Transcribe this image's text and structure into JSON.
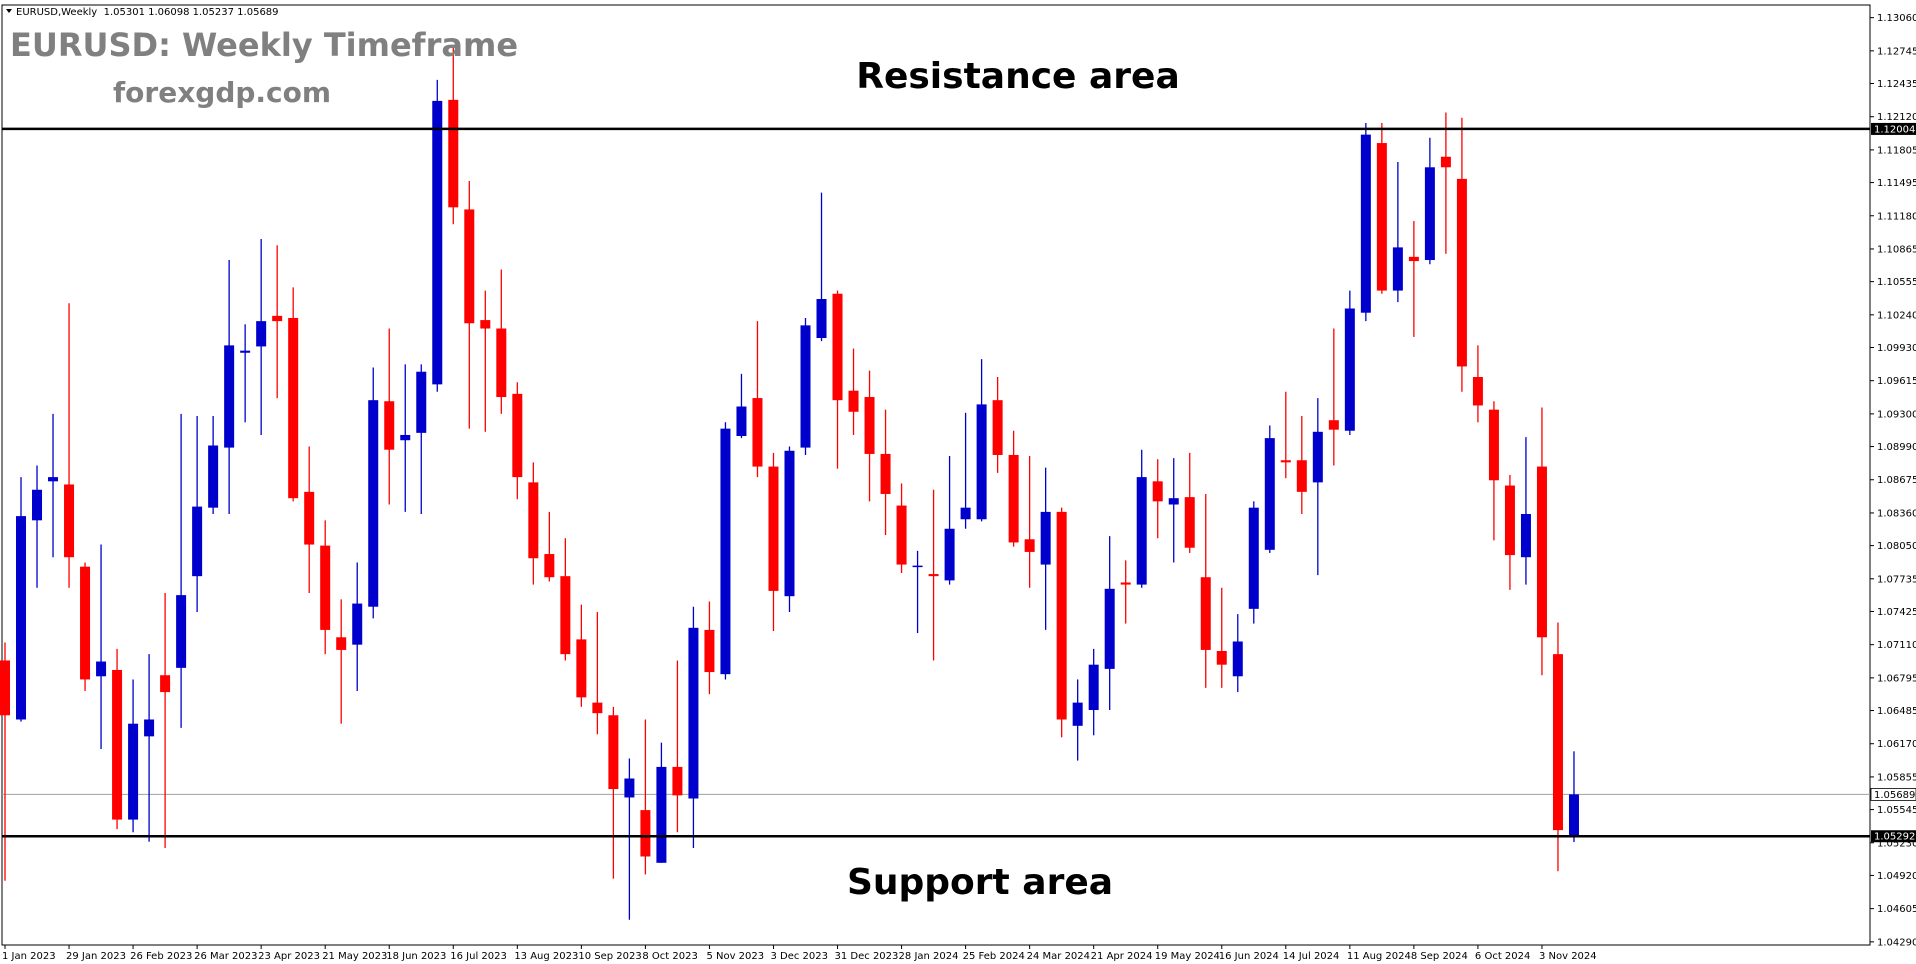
{
  "chart_data": {
    "type": "candlestick",
    "header": "EURUSD,Weekly  1.05301 1.06098 1.05237 1.05689",
    "title": "EURUSD: Weekly Timeframe",
    "subtitle": "forexgdp.com",
    "annotations": [
      "Resistance area",
      "Support area"
    ],
    "up_color": "#0000cd",
    "down_color": "#ff0000",
    "hlines": [
      1.12004,
      1.05292
    ],
    "price_line": 1.05689,
    "ylim": [
      1.0426,
      1.1318
    ],
    "yticks": [
      {
        "value": 1.1306,
        "label": "1.13060"
      },
      1.12745,
      1.12435,
      {
        "value": 1.1212,
        "label": "1.12120"
      },
      1.11805,
      1.11495,
      {
        "value": 1.1118,
        "label": "1.11180"
      },
      1.10865,
      1.10555,
      {
        "value": 1.1024,
        "label": "1.10240"
      },
      {
        "value": 1.0993,
        "label": "1.09930"
      },
      1.09615,
      {
        "value": 1.093,
        "label": "1.09300"
      },
      {
        "value": 1.0899,
        "label": "1.08990"
      },
      1.08675,
      {
        "value": 1.0836,
        "label": "1.08360"
      },
      {
        "value": 1.0805,
        "label": "1.08050"
      },
      1.07735,
      1.07425,
      {
        "value": 1.0711,
        "label": "1.07110"
      },
      1.06795,
      1.06485,
      {
        "value": 1.0617,
        "label": "1.06170"
      },
      1.05855,
      1.05545,
      {
        "value": 1.0523,
        "label": "1.05230"
      },
      {
        "value": 1.0492,
        "label": "1.04920"
      },
      1.04605,
      {
        "value": 1.0429,
        "label": "1.04290"
      }
    ],
    "categories": [
      "1 Jan 2023",
      null,
      null,
      null,
      "29 Jan 2023",
      null,
      null,
      null,
      "26 Feb 2023",
      null,
      null,
      null,
      "26 Mar 2023",
      null,
      null,
      null,
      "23 Apr 2023",
      null,
      null,
      null,
      "21 May 2023",
      null,
      null,
      null,
      "18 Jun 2023",
      null,
      null,
      null,
      "16 Jul 2023",
      null,
      null,
      null,
      "13 Aug 2023",
      null,
      null,
      null,
      "10 Sep 2023",
      null,
      null,
      null,
      "8 Oct 2023",
      null,
      null,
      null,
      "5 Nov 2023",
      null,
      null,
      null,
      "3 Dec 2023",
      null,
      null,
      null,
      "31 Dec 2023",
      null,
      null,
      null,
      "28 Jan 2024",
      null,
      null,
      null,
      "25 Feb 2024",
      null,
      null,
      null,
      "24 Mar 2024",
      null,
      null,
      null,
      "21 Apr 2024",
      null,
      null,
      null,
      "19 May 2024",
      null,
      null,
      null,
      "16 Jun 2024",
      null,
      null,
      null,
      "14 Jul 2024",
      null,
      null,
      null,
      "11 Aug 2024",
      null,
      null,
      null,
      "8 Sep 2024",
      null,
      null,
      null,
      "6 Oct 2024",
      null,
      null,
      null,
      "3 Nov 2024",
      null,
      null
    ],
    "open": [
      1.0696,
      1.064,
      1.0829,
      1.0866,
      1.0863,
      1.0785,
      1.0681,
      1.0687,
      1.0545,
      1.0624,
      1.0682,
      1.0689,
      1.0776,
      1.0841,
      1.0898,
      1.0988,
      1.0994,
      1.1023,
      1.1021,
      1.0856,
      1.0805,
      1.0718,
      1.0711,
      1.0747,
      1.0942,
      1.0905,
      1.0912,
      1.0958,
      1.1228,
      1.1124,
      1.1019,
      1.1011,
      1.0949,
      1.0865,
      1.0797,
      1.0776,
      1.0716,
      1.0656,
      1.0644,
      1.0566,
      1.0554,
      1.0504,
      1.0595,
      1.0565,
      1.0725,
      1.0683,
      1.0909,
      1.0945,
      1.088,
      1.0757,
      1.0898,
      1.1002,
      1.1044,
      1.0952,
      1.0946,
      1.0892,
      1.0843,
      1.0785,
      1.0778,
      1.0772,
      1.083,
      1.083,
      1.0943,
      1.0891,
      1.0811,
      1.0787,
      1.0837,
      1.0634,
      1.0649,
      1.0688,
      1.077,
      1.0768,
      1.0866,
      1.0844,
      1.0851,
      1.0775,
      1.0705,
      1.0681,
      1.0745,
      1.0801,
      1.0886,
      1.0886,
      1.0865,
      1.0924,
      1.0914,
      1.1026,
      1.1187,
      1.1047,
      1.1079,
      1.1076,
      1.1174,
      1.1153,
      1.0965,
      1.0934,
      1.0862,
      1.0794,
      1.088,
      1.0702,
      1.05301
    ],
    "high": [
      1.0713,
      1.087,
      1.0881,
      1.093,
      1.1035,
      1.0789,
      1.0806,
      1.0707,
      1.0678,
      1.0702,
      1.076,
      1.093,
      1.0928,
      1.0928,
      1.1076,
      1.1015,
      1.1096,
      1.109,
      1.105,
      1.0899,
      1.0829,
      1.0754,
      1.0789,
      1.0974,
      1.1011,
      1.0977,
      1.0977,
      1.1247,
      1.1278,
      1.1151,
      1.1047,
      1.1067,
      1.096,
      1.0884,
      1.0837,
      1.0812,
      1.0749,
      1.0742,
      1.0652,
      1.0603,
      1.064,
      1.0618,
      1.0696,
      1.0747,
      1.0752,
      1.0922,
      1.0968,
      1.1018,
      1.0893,
      1.0899,
      1.1021,
      1.114,
      1.1047,
      1.0992,
      1.0971,
      1.0934,
      1.0864,
      1.08,
      1.0858,
      1.089,
      1.0931,
      1.0982,
      1.0965,
      1.0914,
      1.089,
      1.0879,
      1.0841,
      1.0678,
      1.0707,
      1.0814,
      1.0791,
      1.0896,
      1.0887,
      1.0888,
      1.0893,
      1.0854,
      1.0765,
      1.074,
      1.0847,
      1.0919,
      1.0951,
      1.0928,
      1.0945,
      1.1011,
      1.1047,
      1.1206,
      1.1206,
      1.1169,
      1.1113,
      1.1192,
      1.1216,
      1.1211,
      1.0995,
      1.0942,
      1.0872,
      1.0908,
      1.0936,
      1.0732,
      1.06098
    ],
    "low": [
      1.0487,
      1.0638,
      1.0765,
      1.0794,
      1.0765,
      1.0667,
      1.0612,
      1.0536,
      1.0533,
      1.0524,
      1.0518,
      1.0632,
      1.0742,
      1.0835,
      1.0835,
      1.0922,
      1.091,
      1.0945,
      1.0847,
      1.076,
      1.0702,
      1.0636,
      1.0667,
      1.0736,
      1.0844,
      1.0837,
      1.0835,
      1.0951,
      1.111,
      1.0916,
      1.0913,
      1.093,
      1.0849,
      1.0768,
      1.0771,
      1.0696,
      1.0652,
      1.0626,
      1.0489,
      1.045,
      1.0493,
      1.0504,
      1.0533,
      1.0518,
      1.0664,
      1.0678,
      1.0907,
      1.087,
      1.0724,
      1.0742,
      1.0891,
      1.0999,
      1.0878,
      1.091,
      1.0847,
      1.0815,
      1.0779,
      1.0722,
      1.0696,
      1.0768,
      1.0821,
      1.0828,
      1.0874,
      1.0804,
      1.0765,
      1.0725,
      1.0623,
      1.0601,
      1.0625,
      1.0649,
      1.0731,
      1.0765,
      1.0812,
      1.0789,
      1.0798,
      1.067,
      1.067,
      1.0666,
      1.0731,
      1.0798,
      1.0869,
      1.0835,
      1.0777,
      1.0881,
      1.091,
      1.1018,
      1.1044,
      1.1036,
      1.1003,
      1.1072,
      1.1082,
      1.0951,
      1.0922,
      1.081,
      1.0763,
      1.0768,
      1.0682,
      1.0496,
      1.05237
    ],
    "close": [
      1.0644,
      1.0833,
      1.0858,
      1.087,
      1.0794,
      1.0678,
      1.0695,
      1.0545,
      1.0636,
      1.064,
      1.0666,
      1.0758,
      1.0842,
      1.09,
      1.0995,
      1.099,
      1.1018,
      1.1018,
      1.085,
      1.0806,
      1.0725,
      1.0706,
      1.075,
      1.0943,
      1.0896,
      1.091,
      1.097,
      1.1227,
      1.1126,
      1.1016,
      1.1011,
      1.0946,
      1.087,
      1.0793,
      1.0775,
      1.0702,
      1.0661,
      1.0646,
      1.0574,
      1.0584,
      1.051,
      1.0595,
      1.0568,
      1.0727,
      1.0685,
      1.0916,
      1.0937,
      1.088,
      1.0762,
      1.0895,
      1.1014,
      1.1039,
      1.0943,
      1.0932,
      1.0892,
      1.0854,
      1.0787,
      1.0786,
      1.0776,
      1.0821,
      1.0841,
      1.0939,
      1.0891,
      1.0808,
      1.0799,
      1.0837,
      1.064,
      1.0656,
      1.0692,
      1.0764,
      1.0768,
      1.087,
      1.0847,
      1.085,
      1.0803,
      1.0706,
      1.0692,
      1.0714,
      1.0841,
      1.0907,
      1.0884,
      1.0856,
      1.0913,
      1.0915,
      1.103,
      1.1195,
      1.1047,
      1.1088,
      1.1075,
      1.1164,
      1.1164,
      1.0975,
      1.0938,
      1.0867,
      1.0796,
      1.0835,
      1.0718,
      1.0535,
      1.05689
    ]
  }
}
